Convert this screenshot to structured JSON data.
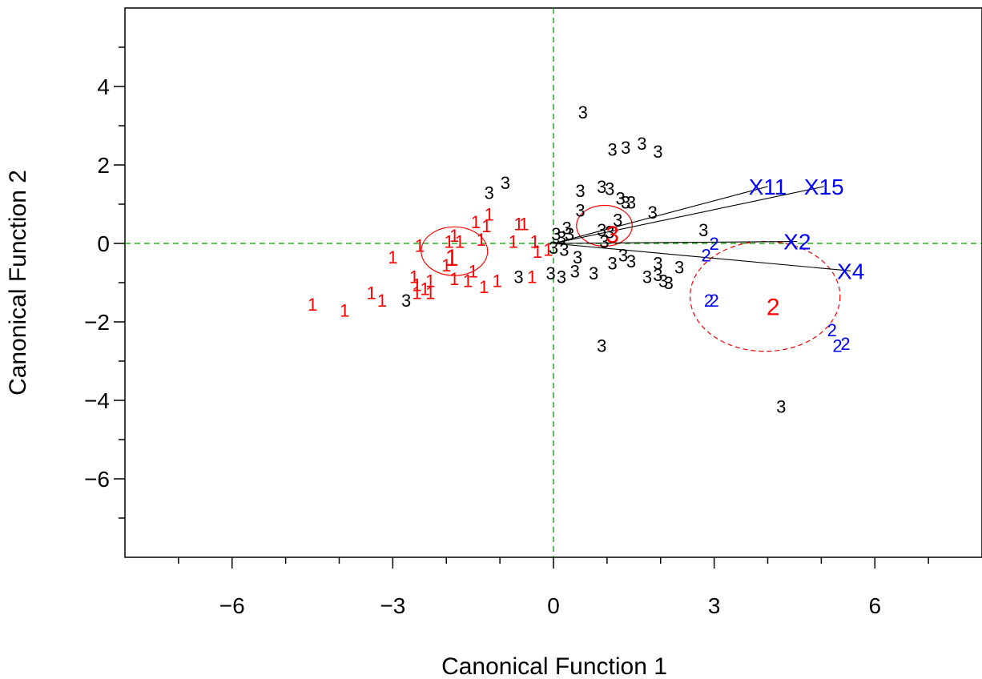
{
  "chart_data": {
    "type": "scatter",
    "title": "",
    "xlabel": "Canonical Function 1",
    "ylabel": "Canonical Function 2",
    "xlim": [
      -8,
      8
    ],
    "ylim": [
      -8,
      6
    ],
    "xticks": [
      -6,
      -3,
      0,
      3,
      6
    ],
    "yticks": [
      -6,
      -4,
      -2,
      0,
      2,
      4
    ],
    "colors": {
      "group1": "#ff0000",
      "group2": "#0000ff",
      "group3": "#000000",
      "reference": "#009900",
      "vector": "#000000",
      "vectorLabel": "#0000ff"
    },
    "series": [
      {
        "name": "1",
        "color": "#ff0000",
        "points": [
          [
            -4.5,
            -1.55
          ],
          [
            -3.9,
            -1.7
          ],
          [
            -3.4,
            -1.25
          ],
          [
            -3.2,
            -1.45
          ],
          [
            -3.0,
            -0.35
          ],
          [
            -2.6,
            -0.85
          ],
          [
            -2.55,
            -1.05
          ],
          [
            -2.55,
            -1.25
          ],
          [
            -2.5,
            -0.05
          ],
          [
            -2.4,
            -1.15
          ],
          [
            -2.3,
            -0.95
          ],
          [
            -2.3,
            -1.25
          ],
          [
            -2.0,
            -0.55
          ],
          [
            -1.95,
            0.05
          ],
          [
            -1.85,
            0.2
          ],
          [
            -1.85,
            -0.9
          ],
          [
            -1.75,
            0.05
          ],
          [
            -1.6,
            -0.95
          ],
          [
            -1.5,
            -0.7
          ],
          [
            -1.45,
            0.55
          ],
          [
            -1.35,
            0.1
          ],
          [
            -1.3,
            -1.1
          ],
          [
            -1.25,
            0.45
          ],
          [
            -1.2,
            0.75
          ],
          [
            -1.05,
            -0.95
          ],
          [
            -0.75,
            0.05
          ],
          [
            -0.65,
            0.5
          ],
          [
            -0.55,
            0.5
          ],
          [
            -0.4,
            -0.85
          ],
          [
            -0.35,
            0.05
          ],
          [
            -0.3,
            -0.2
          ],
          [
            -0.1,
            -0.15
          ]
        ]
      },
      {
        "name": "2",
        "color": "#0000ff",
        "points": [
          [
            2.85,
            -0.3
          ],
          [
            3.0,
            0.0
          ],
          [
            2.9,
            -1.45
          ],
          [
            3.0,
            -1.45
          ],
          [
            5.2,
            -2.2
          ],
          [
            5.3,
            -2.6
          ],
          [
            5.45,
            -2.55
          ]
        ]
      },
      {
        "name": "3",
        "color": "#000000",
        "points": [
          [
            0.55,
            3.35
          ],
          [
            1.1,
            2.4
          ],
          [
            1.35,
            2.45
          ],
          [
            1.65,
            2.55
          ],
          [
            1.95,
            2.35
          ],
          [
            -1.2,
            1.3
          ],
          [
            -0.9,
            1.55
          ],
          [
            0.5,
            1.35
          ],
          [
            0.9,
            1.45
          ],
          [
            1.05,
            1.4
          ],
          [
            1.25,
            1.15
          ],
          [
            1.35,
            1.05
          ],
          [
            1.45,
            1.05
          ],
          [
            1.85,
            0.8
          ],
          [
            0.5,
            0.85
          ],
          [
            1.2,
            0.6
          ],
          [
            2.8,
            0.35
          ],
          [
            0.05,
            0.25
          ],
          [
            0.15,
            0.15
          ],
          [
            0.25,
            0.4
          ],
          [
            0.3,
            0.25
          ],
          [
            0.0,
            -0.1
          ],
          [
            0.2,
            -0.15
          ],
          [
            0.9,
            0.35
          ],
          [
            1.05,
            0.3
          ],
          [
            0.95,
            0.05
          ],
          [
            0.45,
            -0.35
          ],
          [
            1.1,
            -0.5
          ],
          [
            1.45,
            -0.45
          ],
          [
            1.3,
            -0.3
          ],
          [
            1.95,
            -0.5
          ],
          [
            2.35,
            -0.6
          ],
          [
            0.4,
            -0.7
          ],
          [
            0.15,
            -0.85
          ],
          [
            -0.05,
            -0.75
          ],
          [
            0.75,
            -0.75
          ],
          [
            1.75,
            -0.85
          ],
          [
            1.95,
            -0.8
          ],
          [
            2.05,
            -0.95
          ],
          [
            2.15,
            -1.0
          ],
          [
            -0.65,
            -0.85
          ],
          [
            -2.75,
            -1.45
          ],
          [
            0.9,
            -2.6
          ],
          [
            4.25,
            -4.15
          ]
        ]
      }
    ],
    "centroids": [
      {
        "label": "1",
        "x": -1.9,
        "y": -0.35,
        "color": "#ff0000"
      },
      {
        "label": "2",
        "x": 4.1,
        "y": -1.6,
        "color": "#ff0000"
      },
      {
        "label": "3",
        "x": 1.1,
        "y": 0.25,
        "color": "#ff0000"
      }
    ],
    "ellipses": [
      {
        "group": "1",
        "cx": -1.85,
        "cy": -0.2,
        "rx": 0.62,
        "ry": 0.62,
        "dashed": false
      },
      {
        "group": "3",
        "cx": 0.95,
        "cy": 0.45,
        "rx": 0.52,
        "ry": 0.52,
        "dashed": false
      },
      {
        "group": "2",
        "cx": 3.95,
        "cy": -1.35,
        "rx": 1.4,
        "ry": 1.4,
        "dashed": true
      }
    ],
    "vectors": [
      {
        "label": "X11",
        "x": 4.0,
        "y": 1.45
      },
      {
        "label": "X15",
        "x": 5.05,
        "y": 1.45
      },
      {
        "label": "X2",
        "x": 4.55,
        "y": 0.05
      },
      {
        "label": "X4",
        "x": 5.55,
        "y": -0.7
      }
    ]
  }
}
